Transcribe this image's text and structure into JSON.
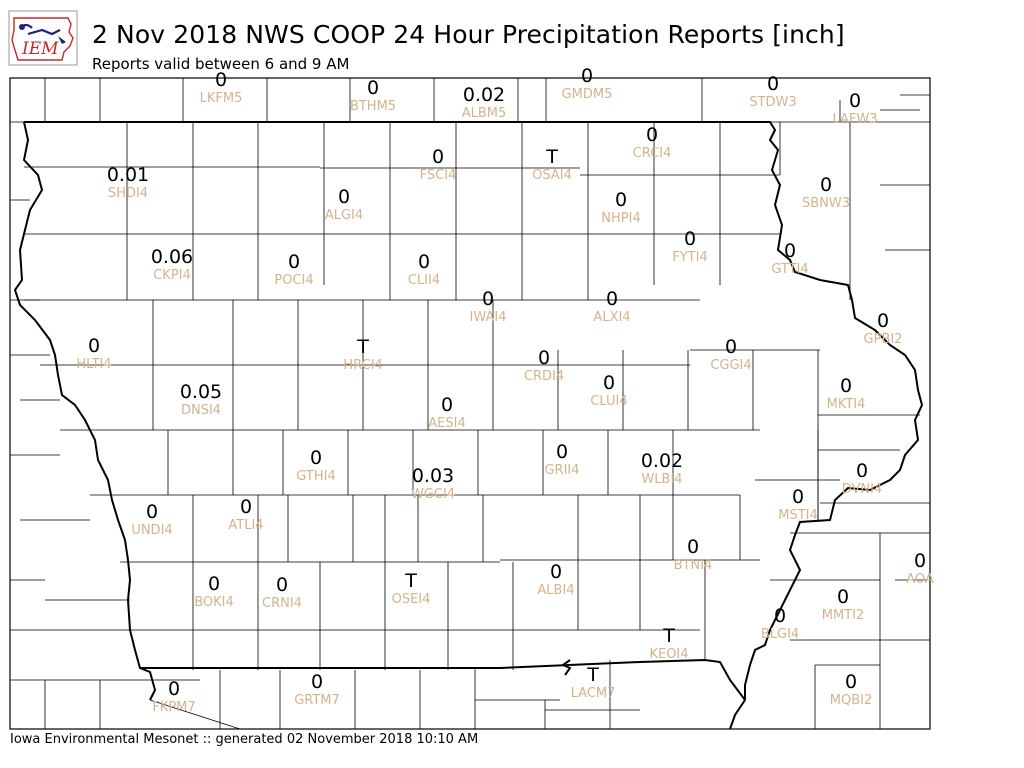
{
  "header": {
    "logo_text": "IEM",
    "title": "2 Nov 2018 NWS COOP 24 Hour Precipitation Reports [inch]",
    "subtitle": "Reports valid between 6 and 9 AM"
  },
  "footer": {
    "text": "Iowa Environmental Mesonet :: generated 02 November 2018 10:10 AM"
  },
  "colors": {
    "value_text": "#000000",
    "station_id_text": "#d2b48c",
    "county_lines": "#000000",
    "logo_blue": "#1a237e",
    "logo_red": "#c62828"
  },
  "stations": [
    {
      "id": "LKFM5",
      "value": "0"
    },
    {
      "id": "BTHM5",
      "value": "0"
    },
    {
      "id": "ALBM5",
      "value": "0.02"
    },
    {
      "id": "GMDM5",
      "value": "0"
    },
    {
      "id": "STDW3",
      "value": "0"
    },
    {
      "id": "LAFW3",
      "value": "0"
    },
    {
      "id": "SHDI4",
      "value": "0.01"
    },
    {
      "id": "FSCI4",
      "value": "0"
    },
    {
      "id": "OSAI4",
      "value": "T"
    },
    {
      "id": "CRCI4",
      "value": "0"
    },
    {
      "id": "ALGI4",
      "value": "0"
    },
    {
      "id": "NHPI4",
      "value": "0"
    },
    {
      "id": "SBNW3",
      "value": "0"
    },
    {
      "id": "CKPI4",
      "value": "0.06"
    },
    {
      "id": "POCI4",
      "value": "0"
    },
    {
      "id": "CLII4",
      "value": "0"
    },
    {
      "id": "FYTI4",
      "value": "0"
    },
    {
      "id": "GTTI4",
      "value": "0"
    },
    {
      "id": "IWAI4",
      "value": "0"
    },
    {
      "id": "ALXI4",
      "value": "0"
    },
    {
      "id": "GPBI2",
      "value": "0"
    },
    {
      "id": "HLTI4",
      "value": "0"
    },
    {
      "id": "HRCI4",
      "value": "T"
    },
    {
      "id": "CRDI4",
      "value": "0"
    },
    {
      "id": "CGGI4",
      "value": "0"
    },
    {
      "id": "DNSI4",
      "value": "0.05"
    },
    {
      "id": "CLUI4",
      "value": "0"
    },
    {
      "id": "MKTI4",
      "value": "0"
    },
    {
      "id": "AESI4",
      "value": "0"
    },
    {
      "id": "GTHI4",
      "value": "0"
    },
    {
      "id": "GRII4",
      "value": "0"
    },
    {
      "id": "WLBI4",
      "value": "0.02"
    },
    {
      "id": "WGCI4",
      "value": "0.03"
    },
    {
      "id": "DVNI4",
      "value": "0"
    },
    {
      "id": "UNDI4",
      "value": "0"
    },
    {
      "id": "ATLI4",
      "value": "0"
    },
    {
      "id": "MSTI4",
      "value": "0"
    },
    {
      "id": "BTNI4",
      "value": "0"
    },
    {
      "id": "AOA",
      "value": "0"
    },
    {
      "id": "BOKI4",
      "value": "0"
    },
    {
      "id": "CRNI4",
      "value": "0"
    },
    {
      "id": "OSEI4",
      "value": "T"
    },
    {
      "id": "ALBI4",
      "value": "0"
    },
    {
      "id": "MMTI2",
      "value": "0"
    },
    {
      "id": "KEOI4",
      "value": "T"
    },
    {
      "id": "BLGI4",
      "value": "0"
    },
    {
      "id": "FKPM7",
      "value": "0"
    },
    {
      "id": "GRTM7",
      "value": "0"
    },
    {
      "id": "LACM7",
      "value": "T"
    },
    {
      "id": "MQBI2",
      "value": "0"
    }
  ]
}
